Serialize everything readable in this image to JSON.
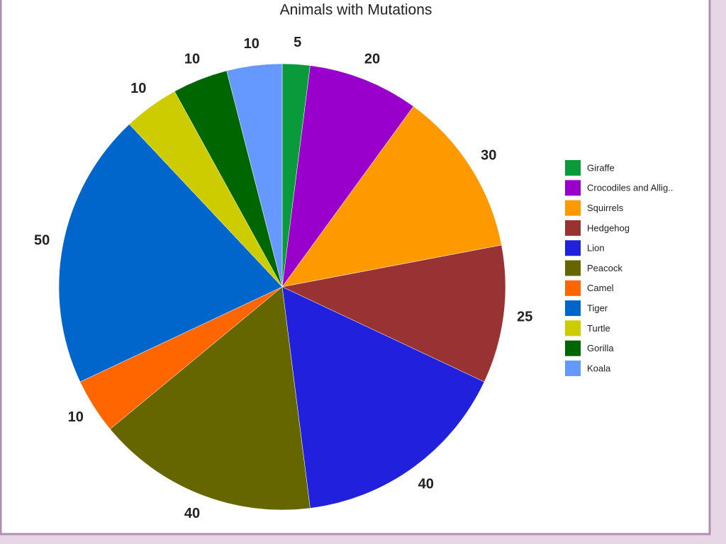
{
  "chart_data": {
    "type": "pie",
    "title": "Animals with Mutations",
    "categories": [
      "Giraffe",
      "Crocodiles and Allig..",
      "Squirrels",
      "Hedgehog",
      "Lion",
      "Peacock",
      "Camel",
      "Tiger",
      "Turtle",
      "Gorilla",
      "Koala"
    ],
    "values": [
      5,
      20,
      30,
      25,
      40,
      40,
      10,
      50,
      10,
      10,
      10
    ],
    "colors": [
      "#0a9a3c",
      "#9900cc",
      "#ff9900",
      "#993333",
      "#2020dd",
      "#666600",
      "#ff6600",
      "#0066cc",
      "#cccc00",
      "#006600",
      "#6699ff"
    ],
    "legend": "right"
  }
}
